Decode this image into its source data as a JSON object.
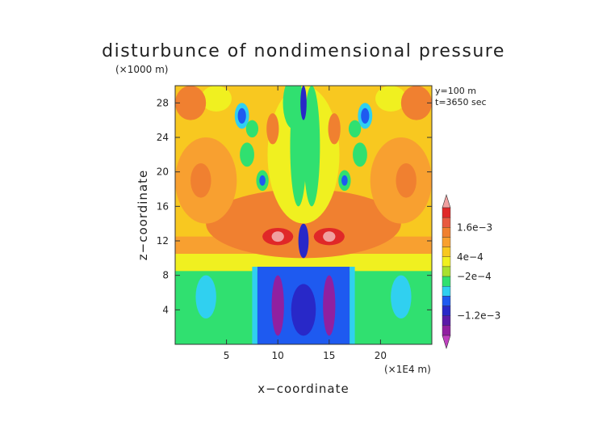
{
  "chart_data": {
    "type": "heatmap",
    "title": "disturbunce of nondimensional pressure",
    "scale_note": "(×1000 m)",
    "xlabel": "x−coordinate",
    "ylabel": "z−coordinate",
    "x_unit_note": "(×1E4 m)",
    "info_lines": [
      "y=100  m",
      "t=3650  sec"
    ],
    "x_range": [
      0,
      25
    ],
    "y_range": [
      0,
      30
    ],
    "x_ticks": [
      5,
      10,
      15,
      20
    ],
    "y_ticks": [
      4,
      8,
      12,
      16,
      20,
      24,
      28
    ],
    "colorbar": {
      "levels": [
        {
          "color": "#c040c0"
        },
        {
          "color": "#9020a0"
        },
        {
          "color": "#5a1aa8"
        },
        {
          "color": "#2828c8"
        },
        {
          "color": "#1e5af0"
        },
        {
          "color": "#30d0f0"
        },
        {
          "color": "#30e070"
        },
        {
          "color": "#a8e030"
        },
        {
          "color": "#f0f020"
        },
        {
          "color": "#f8c820"
        },
        {
          "color": "#f8a030"
        },
        {
          "color": "#f08030"
        },
        {
          "color": "#e85a40"
        },
        {
          "color": "#e02828"
        },
        {
          "color": "#f0a0a0"
        }
      ],
      "tick_labels": [
        {
          "text": "1.6e−3",
          "between": 12
        },
        {
          "text": "4e−4",
          "between": 9
        },
        {
          "text": "−2e−4",
          "between": 7
        },
        {
          "text": "−1.2e−3",
          "between": 3
        }
      ]
    },
    "regions": [
      {
        "shape": "rect",
        "x": [
          0,
          25
        ],
        "z": [
          0,
          30
        ],
        "level": 9
      },
      {
        "shape": "rect",
        "x": [
          0,
          25
        ],
        "z": [
          0,
          9
        ],
        "level": 6
      },
      {
        "shape": "rect",
        "x": [
          0,
          25
        ],
        "z": [
          8.5,
          11
        ],
        "level": 8
      },
      {
        "shape": "rect",
        "x": [
          0,
          25
        ],
        "z": [
          10.5,
          12.5
        ],
        "level": 10
      },
      {
        "shape": "rect",
        "x": [
          8,
          17
        ],
        "z": [
          0,
          9
        ],
        "level": 4
      },
      {
        "shape": "rect",
        "x": [
          7.5,
          8
        ],
        "z": [
          0,
          9
        ],
        "level": 5
      },
      {
        "shape": "rect",
        "x": [
          17,
          17.5
        ],
        "z": [
          0,
          9
        ],
        "level": 5
      },
      {
        "shape": "ellipse",
        "cx": 10,
        "cz": 4.5,
        "rx": 0.6,
        "rz": 3.5,
        "level": 1
      },
      {
        "shape": "ellipse",
        "cx": 15,
        "cz": 4.5,
        "rx": 0.6,
        "rz": 3.5,
        "level": 1
      },
      {
        "shape": "ellipse",
        "cx": 12.5,
        "cz": 4,
        "rx": 1.2,
        "rz": 3,
        "level": 3
      },
      {
        "shape": "ellipse",
        "cx": 3,
        "cz": 5.5,
        "rx": 1,
        "rz": 2.5,
        "level": 5
      },
      {
        "shape": "ellipse",
        "cx": 22,
        "cz": 5.5,
        "rx": 1,
        "rz": 2.5,
        "level": 5
      },
      {
        "shape": "ellipse",
        "cx": 12.5,
        "cz": 14,
        "rx": 9.5,
        "rz": 4,
        "level": 11
      },
      {
        "shape": "ellipse",
        "cx": 3,
        "cz": 19,
        "rx": 3,
        "rz": 5,
        "level": 10
      },
      {
        "shape": "ellipse",
        "cx": 22,
        "cz": 19,
        "rx": 3,
        "rz": 5,
        "level": 10
      },
      {
        "shape": "ellipse",
        "cx": 2.5,
        "cz": 19,
        "rx": 1,
        "rz": 2,
        "level": 11
      },
      {
        "shape": "ellipse",
        "cx": 22.5,
        "cz": 19,
        "rx": 1,
        "rz": 2,
        "level": 11
      },
      {
        "shape": "ellipse",
        "cx": 10,
        "cz": 12.5,
        "rx": 1.5,
        "rz": 1,
        "level": 13
      },
      {
        "shape": "ellipse",
        "cx": 15,
        "cz": 12.5,
        "rx": 1.5,
        "rz": 1,
        "level": 13
      },
      {
        "shape": "ellipse",
        "cx": 10,
        "cz": 12.5,
        "rx": 0.6,
        "rz": 0.6,
        "level": 14
      },
      {
        "shape": "ellipse",
        "cx": 15,
        "cz": 12.5,
        "rx": 0.6,
        "rz": 0.6,
        "level": 14
      },
      {
        "shape": "ellipse",
        "cx": 12.5,
        "cz": 12,
        "rx": 0.5,
        "rz": 2,
        "level": 3
      },
      {
        "shape": "ellipse",
        "cx": 12.5,
        "cz": 22,
        "rx": 3.5,
        "rz": 8,
        "level": 8
      },
      {
        "shape": "ellipse",
        "cx": 12,
        "cz": 23,
        "rx": 0.8,
        "rz": 7,
        "level": 6
      },
      {
        "shape": "ellipse",
        "cx": 13.3,
        "cz": 23,
        "rx": 0.8,
        "rz": 7,
        "level": 6
      },
      {
        "shape": "ellipse",
        "cx": 11.5,
        "cz": 28,
        "rx": 1,
        "rz": 3,
        "level": 6
      },
      {
        "shape": "ellipse",
        "cx": 4,
        "cz": 28.5,
        "rx": 1.5,
        "rz": 1.5,
        "level": 8
      },
      {
        "shape": "ellipse",
        "cx": 21,
        "cz": 28.5,
        "rx": 1.5,
        "rz": 1.5,
        "level": 8
      },
      {
        "shape": "ellipse",
        "cx": 1.5,
        "cz": 28,
        "rx": 1.5,
        "rz": 2,
        "level": 11
      },
      {
        "shape": "ellipse",
        "cx": 23.5,
        "cz": 28,
        "rx": 1.5,
        "rz": 2,
        "level": 11
      },
      {
        "shape": "ellipse",
        "cx": 6.5,
        "cz": 26.5,
        "rx": 0.7,
        "rz": 1.5,
        "level": 5
      },
      {
        "shape": "ellipse",
        "cx": 18.5,
        "cz": 26.5,
        "rx": 0.7,
        "rz": 1.5,
        "level": 5
      },
      {
        "shape": "ellipse",
        "cx": 6.5,
        "cz": 26.5,
        "rx": 0.4,
        "rz": 0.9,
        "level": 4
      },
      {
        "shape": "ellipse",
        "cx": 18.5,
        "cz": 26.5,
        "rx": 0.4,
        "rz": 0.9,
        "level": 4
      },
      {
        "shape": "ellipse",
        "cx": 7.5,
        "cz": 25,
        "rx": 0.6,
        "rz": 1,
        "level": 6
      },
      {
        "shape": "ellipse",
        "cx": 17.5,
        "cz": 25,
        "rx": 0.6,
        "rz": 1,
        "level": 6
      },
      {
        "shape": "ellipse",
        "cx": 7,
        "cz": 22,
        "rx": 0.7,
        "rz": 1.4,
        "level": 6
      },
      {
        "shape": "ellipse",
        "cx": 18,
        "cz": 22,
        "rx": 0.7,
        "rz": 1.4,
        "level": 6
      },
      {
        "shape": "ellipse",
        "cx": 8.5,
        "cz": 19,
        "rx": 0.6,
        "rz": 1.2,
        "level": 6
      },
      {
        "shape": "ellipse",
        "cx": 16.5,
        "cz": 19,
        "rx": 0.6,
        "rz": 1.2,
        "level": 6
      },
      {
        "shape": "ellipse",
        "cx": 8.5,
        "cz": 19,
        "rx": 0.3,
        "rz": 0.6,
        "level": 4
      },
      {
        "shape": "ellipse",
        "cx": 16.5,
        "cz": 19,
        "rx": 0.3,
        "rz": 0.6,
        "level": 4
      },
      {
        "shape": "ellipse",
        "cx": 9.5,
        "cz": 25,
        "rx": 0.6,
        "rz": 1.8,
        "level": 11
      },
      {
        "shape": "ellipse",
        "cx": 15.5,
        "cz": 25,
        "rx": 0.6,
        "rz": 1.8,
        "level": 11
      },
      {
        "shape": "ellipse",
        "cx": 12.5,
        "cz": 28,
        "rx": 0.3,
        "rz": 2,
        "level": 3
      }
    ]
  }
}
